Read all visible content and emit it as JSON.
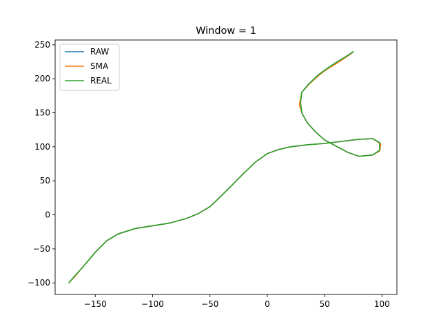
{
  "chart_data": {
    "type": "line",
    "title": "Window = 1",
    "xlabel": "",
    "ylabel": "",
    "xlim": [
      -185,
      113
    ],
    "ylim": [
      -117,
      257
    ],
    "xticks": [
      -150,
      -100,
      -50,
      0,
      50,
      100
    ],
    "yticks": [
      -100,
      -50,
      0,
      50,
      100,
      150,
      200,
      250
    ],
    "grid": false,
    "legend_position": "top-left",
    "series": [
      {
        "name": "RAW",
        "color": "#1f77b4",
        "points": [
          [
            -173,
            -100
          ],
          [
            -168,
            -90
          ],
          [
            -160,
            -75
          ],
          [
            -150,
            -55
          ],
          [
            -140,
            -38
          ],
          [
            -130,
            -28
          ],
          [
            -115,
            -20
          ],
          [
            -100,
            -16
          ],
          [
            -85,
            -12
          ],
          [
            -70,
            -5
          ],
          [
            -60,
            2
          ],
          [
            -50,
            12
          ],
          [
            -40,
            28
          ],
          [
            -30,
            45
          ],
          [
            -20,
            62
          ],
          [
            -10,
            78
          ],
          [
            0,
            90
          ],
          [
            10,
            96
          ],
          [
            20,
            100
          ],
          [
            35,
            103
          ],
          [
            50,
            105
          ],
          [
            65,
            108
          ],
          [
            80,
            111
          ],
          [
            92,
            112
          ],
          [
            98,
            106
          ],
          [
            98,
            95
          ],
          [
            92,
            88
          ],
          [
            80,
            86
          ],
          [
            70,
            92
          ],
          [
            60,
            101
          ],
          [
            50,
            110
          ],
          [
            42,
            122
          ],
          [
            35,
            135
          ],
          [
            30,
            150
          ],
          [
            29,
            165
          ],
          [
            30,
            180
          ],
          [
            36,
            192
          ],
          [
            44,
            205
          ],
          [
            52,
            215
          ],
          [
            60,
            224
          ],
          [
            68,
            232
          ],
          [
            75,
            240
          ]
        ]
      },
      {
        "name": "SMA",
        "color": "#ff7f0e",
        "points": [
          [
            -173,
            -100
          ],
          [
            -168,
            -91
          ],
          [
            -160,
            -75
          ],
          [
            -150,
            -55
          ],
          [
            -140,
            -38
          ],
          [
            -130,
            -28
          ],
          [
            -115,
            -20
          ],
          [
            -100,
            -16
          ],
          [
            -85,
            -12
          ],
          [
            -70,
            -5
          ],
          [
            -60,
            2
          ],
          [
            -50,
            12
          ],
          [
            -40,
            28
          ],
          [
            -30,
            45
          ],
          [
            -20,
            62
          ],
          [
            -10,
            78
          ],
          [
            0,
            90
          ],
          [
            10,
            96
          ],
          [
            20,
            100
          ],
          [
            35,
            103
          ],
          [
            50,
            105
          ],
          [
            65,
            108
          ],
          [
            80,
            111
          ],
          [
            92,
            112
          ],
          [
            99,
            104
          ],
          [
            98,
            94
          ],
          [
            92,
            88
          ],
          [
            80,
            86
          ],
          [
            70,
            92
          ],
          [
            60,
            101
          ],
          [
            50,
            110
          ],
          [
            42,
            122
          ],
          [
            35,
            135
          ],
          [
            30,
            150
          ],
          [
            28,
            162
          ],
          [
            30,
            180
          ],
          [
            37,
            193
          ],
          [
            45,
            205
          ],
          [
            52,
            214
          ],
          [
            61,
            223
          ],
          [
            68,
            231
          ],
          [
            74,
            238
          ]
        ]
      },
      {
        "name": "REAL",
        "color": "#2ca02c",
        "points": [
          [
            -173,
            -100
          ],
          [
            -168,
            -90
          ],
          [
            -160,
            -75
          ],
          [
            -150,
            -55
          ],
          [
            -140,
            -38
          ],
          [
            -130,
            -28
          ],
          [
            -115,
            -20
          ],
          [
            -100,
            -16
          ],
          [
            -85,
            -12
          ],
          [
            -70,
            -5
          ],
          [
            -60,
            2
          ],
          [
            -50,
            12
          ],
          [
            -40,
            28
          ],
          [
            -30,
            45
          ],
          [
            -20,
            62
          ],
          [
            -10,
            78
          ],
          [
            0,
            90
          ],
          [
            10,
            96
          ],
          [
            20,
            100
          ],
          [
            35,
            103
          ],
          [
            50,
            105
          ],
          [
            65,
            108
          ],
          [
            80,
            111
          ],
          [
            92,
            112
          ],
          [
            98,
            106
          ],
          [
            98,
            95
          ],
          [
            92,
            88
          ],
          [
            80,
            86
          ],
          [
            70,
            92
          ],
          [
            60,
            101
          ],
          [
            50,
            110
          ],
          [
            42,
            122
          ],
          [
            35,
            135
          ],
          [
            30,
            150
          ],
          [
            29,
            165
          ],
          [
            30,
            180
          ],
          [
            36,
            192
          ],
          [
            44,
            205
          ],
          [
            52,
            215
          ],
          [
            60,
            224
          ],
          [
            68,
            232
          ],
          [
            75,
            240
          ]
        ]
      }
    ]
  }
}
